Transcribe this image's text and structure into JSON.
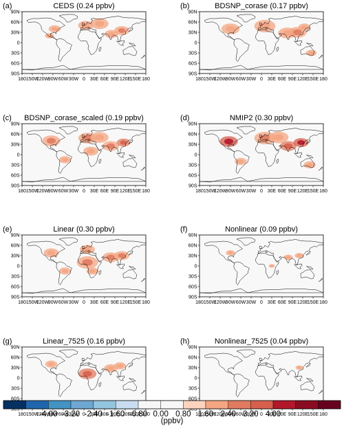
{
  "panels": [
    {
      "letter": "(a)",
      "title": "CEDS (0.24 ppbv)",
      "emissions": [
        {
          "lon": 5,
          "lat": 50,
          "val": 1.1,
          "r": 10
        },
        {
          "lon": 80,
          "lat": 25,
          "val": 1.4,
          "r": 9
        },
        {
          "lon": 110,
          "lat": 35,
          "val": 2.0,
          "r": 10
        },
        {
          "lon": 45,
          "lat": 55,
          "val": 0.9,
          "r": 12
        },
        {
          "lon": -85,
          "lat": 40,
          "val": 0.9,
          "r": 8
        },
        {
          "lon": -100,
          "lat": 20,
          "val": 0.9,
          "r": 6
        }
      ]
    },
    {
      "letter": "(b)",
      "title": "BDSNP_corase (0.17 ppbv)",
      "emissions": [
        {
          "lon": 10,
          "lat": 48,
          "val": 1.2,
          "r": 14
        },
        {
          "lon": 75,
          "lat": 28,
          "val": 1.5,
          "r": 12
        },
        {
          "lon": 105,
          "lat": 30,
          "val": 2.0,
          "r": 12
        },
        {
          "lon": -90,
          "lat": 40,
          "val": 1.2,
          "r": 12
        },
        {
          "lon": 125,
          "lat": 45,
          "val": 1.3,
          "r": 8
        },
        {
          "lon": 145,
          "lat": -30,
          "val": 0.9,
          "r": 7
        }
      ]
    },
    {
      "letter": "(c)",
      "title": "BDSNP_corase_scaled (0.19 ppbv)",
      "emissions": [
        {
          "lon": -95,
          "lat": 40,
          "val": 1.8,
          "r": 12
        },
        {
          "lon": 10,
          "lat": 48,
          "val": 1.6,
          "r": 12
        },
        {
          "lon": 78,
          "lat": 25,
          "val": 2.4,
          "r": 11
        },
        {
          "lon": 115,
          "lat": 35,
          "val": 3.0,
          "r": 9
        },
        {
          "lon": 20,
          "lat": 10,
          "val": 1.0,
          "r": 10
        },
        {
          "lon": 45,
          "lat": 50,
          "val": 1.0,
          "r": 12
        },
        {
          "lon": -55,
          "lat": -15,
          "val": 0.9,
          "r": 8
        }
      ]
    },
    {
      "letter": "(d)",
      "title": "NMIP2 (0.30 ppbv)",
      "emissions": [
        {
          "lon": -95,
          "lat": 38,
          "val": 3.6,
          "r": 12
        },
        {
          "lon": 10,
          "lat": 48,
          "val": 1.9,
          "r": 14
        },
        {
          "lon": 78,
          "lat": 25,
          "val": 2.8,
          "r": 11
        },
        {
          "lon": 115,
          "lat": 35,
          "val": 3.7,
          "r": 10
        },
        {
          "lon": 50,
          "lat": 50,
          "val": 1.4,
          "r": 13
        },
        {
          "lon": -60,
          "lat": -20,
          "val": 1.0,
          "r": 8
        },
        {
          "lon": 140,
          "lat": -30,
          "val": 1.0,
          "r": 8
        }
      ]
    },
    {
      "letter": "(e)",
      "title": "Linear (0.30 ppbv)",
      "emissions": [
        {
          "lon": 10,
          "lat": 10,
          "val": 2.0,
          "r": 14
        },
        {
          "lon": 78,
          "lat": 25,
          "val": 2.2,
          "r": 11
        },
        {
          "lon": 110,
          "lat": 30,
          "val": 1.8,
          "r": 10
        },
        {
          "lon": -95,
          "lat": 38,
          "val": 1.2,
          "r": 10
        },
        {
          "lon": 10,
          "lat": 48,
          "val": 1.0,
          "r": 10
        },
        {
          "lon": -55,
          "lat": -15,
          "val": 1.0,
          "r": 8
        },
        {
          "lon": 25,
          "lat": -15,
          "val": 0.9,
          "r": 8
        }
      ]
    },
    {
      "letter": "(f)",
      "title": "Nonlinear (0.09 ppbv)",
      "emissions": [
        {
          "lon": 110,
          "lat": 30,
          "val": 1.0,
          "r": 6
        },
        {
          "lon": 78,
          "lat": 25,
          "val": 0.9,
          "r": 6
        },
        {
          "lon": -90,
          "lat": 38,
          "val": 0.9,
          "r": 6
        },
        {
          "lon": 30,
          "lat": 0,
          "val": 0.9,
          "r": 4
        }
      ]
    },
    {
      "letter": "(g)",
      "title": "Linear_7525 (0.16 ppbv)",
      "emissions": [
        {
          "lon": 10,
          "lat": 12,
          "val": 2.6,
          "r": 12
        },
        {
          "lon": 78,
          "lat": 28,
          "val": 1.0,
          "r": 9
        },
        {
          "lon": -95,
          "lat": 40,
          "val": 0.9,
          "r": 8
        },
        {
          "lon": 105,
          "lat": 35,
          "val": 0.9,
          "r": 8
        }
      ]
    },
    {
      "letter": "(h)",
      "title": "Nonlinear_7525 (0.04 ppbv)",
      "emissions": [
        {
          "lon": 110,
          "lat": 30,
          "val": 0.9,
          "r": 5
        }
      ]
    }
  ],
  "lon_ticks": [
    -180,
    -150,
    -120,
    -90,
    -60,
    -30,
    0,
    30,
    60,
    90,
    120,
    150,
    180
  ],
  "lon_tick_labels": [
    "180",
    "150W",
    "120W",
    "90W",
    "60W",
    "30W",
    "0",
    "30E",
    "60E",
    "90E",
    "120E",
    "150E",
    "180"
  ],
  "lat_ticks": [
    90,
    60,
    30,
    0,
    -30,
    -60,
    -90
  ],
  "lat_tick_labels": [
    "90N",
    "60N",
    "30N",
    "0",
    "30S",
    "60S",
    "90S"
  ],
  "colorbar": {
    "unit": "(ppbv)",
    "levels": [
      -4.0,
      -3.2,
      -2.4,
      -1.6,
      -0.8,
      0.0,
      0.8,
      1.6,
      2.4,
      3.2,
      4.0
    ],
    "labels": [
      "-4.00",
      "-3.20",
      "-2.40",
      "-1.60",
      "-0.80",
      "0.00",
      "0.80",
      "1.60",
      "2.40",
      "3.20",
      "4.00"
    ],
    "colors": [
      "#053061",
      "#2166ac",
      "#4393c3",
      "#6fa7d3",
      "#92c5de",
      "#c8def0",
      "#f7f7f7",
      "#f7f7f7",
      "#fbd3bf",
      "#f4a582",
      "#e07b60",
      "#d6604d",
      "#b2182b",
      "#8a0c22",
      "#67001f"
    ]
  },
  "colors": {
    "ocean": "#f8f8f8",
    "land": "#f8f8f8",
    "coast": "#000000"
  }
}
